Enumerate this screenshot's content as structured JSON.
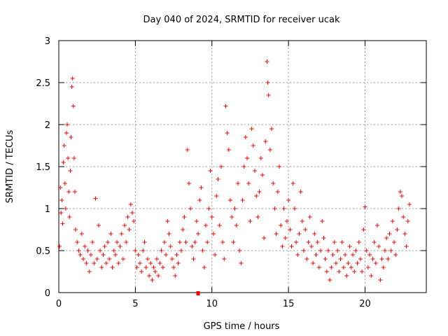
{
  "chart_data": {
    "type": "scatter",
    "title": "Day 040 of 2024, SRMTID for receiver ucak",
    "xlabel": "GPS time / hours",
    "ylabel": "SRMTID / TECUs",
    "xlim": [
      0,
      24
    ],
    "ylim": [
      0,
      3
    ],
    "xticks": [
      0,
      5,
      10,
      15,
      20
    ],
    "xtick_labels": [
      "0",
      "5",
      "10",
      "15",
      "20"
    ],
    "yticks": [
      0,
      0.5,
      1,
      1.5,
      2,
      2.5,
      3
    ],
    "ytick_labels": [
      "0",
      "0.5",
      "1",
      "1.5",
      "2",
      "2.5",
      "3"
    ],
    "grid": true,
    "series": [
      {
        "name": "SRMTID",
        "color": "#ff0000",
        "marker": "plus",
        "note": "dense scatter of many points; representative sample estimated from image",
        "points": [
          [
            0.05,
            0.55
          ],
          [
            0.1,
            1.25
          ],
          [
            0.15,
            0.95
          ],
          [
            0.2,
            1.1
          ],
          [
            0.25,
            0.82
          ],
          [
            0.3,
            1.55
          ],
          [
            0.35,
            1.75
          ],
          [
            0.4,
            1.3
          ],
          [
            0.45,
            1.0
          ],
          [
            0.5,
            1.9
          ],
          [
            0.55,
            2.0
          ],
          [
            0.6,
            1.6
          ],
          [
            0.65,
            1.2
          ],
          [
            0.7,
            0.9
          ],
          [
            0.75,
            1.45
          ],
          [
            0.8,
            1.85
          ],
          [
            0.85,
            2.45
          ],
          [
            0.9,
            2.55
          ],
          [
            0.95,
            2.22
          ],
          [
            1.0,
            1.6
          ],
          [
            1.05,
            1.2
          ],
          [
            1.1,
            0.75
          ],
          [
            1.2,
            0.6
          ],
          [
            1.3,
            0.5
          ],
          [
            1.4,
            0.45
          ],
          [
            1.5,
            0.7
          ],
          [
            1.6,
            0.4
          ],
          [
            1.7,
            0.55
          ],
          [
            1.8,
            0.35
          ],
          [
            1.9,
            0.5
          ],
          [
            2.0,
            0.25
          ],
          [
            2.1,
            0.45
          ],
          [
            2.2,
            0.6
          ],
          [
            2.3,
            0.35
          ],
          [
            2.4,
            1.12
          ],
          [
            2.5,
            0.4
          ],
          [
            2.6,
            0.8
          ],
          [
            2.7,
            0.5
          ],
          [
            2.8,
            0.3
          ],
          [
            2.9,
            0.45
          ],
          [
            3.0,
            0.55
          ],
          [
            3.1,
            0.35
          ],
          [
            3.2,
            0.6
          ],
          [
            3.3,
            0.4
          ],
          [
            3.4,
            0.7
          ],
          [
            3.5,
            0.3
          ],
          [
            3.6,
            0.5
          ],
          [
            3.7,
            0.45
          ],
          [
            3.8,
            0.6
          ],
          [
            3.9,
            0.35
          ],
          [
            4.0,
            0.55
          ],
          [
            4.1,
            0.7
          ],
          [
            4.2,
            0.4
          ],
          [
            4.3,
            0.8
          ],
          [
            4.4,
            0.6
          ],
          [
            4.5,
            0.9
          ],
          [
            4.6,
            0.75
          ],
          [
            4.7,
            1.05
          ],
          [
            4.8,
            0.95
          ],
          [
            4.9,
            0.85
          ],
          [
            5.0,
            0.5
          ],
          [
            5.1,
            0.3
          ],
          [
            5.2,
            0.45
          ],
          [
            5.3,
            0.35
          ],
          [
            5.4,
            0.25
          ],
          [
            5.5,
            0.5
          ],
          [
            5.6,
            0.6
          ],
          [
            5.7,
            0.3
          ],
          [
            5.8,
            0.4
          ],
          [
            5.9,
            0.2
          ],
          [
            6.0,
            0.35
          ],
          [
            6.1,
            0.15
          ],
          [
            6.2,
            0.3
          ],
          [
            6.3,
            0.25
          ],
          [
            6.4,
            0.4
          ],
          [
            6.5,
            0.2
          ],
          [
            6.6,
            0.35
          ],
          [
            6.7,
            0.5
          ],
          [
            6.8,
            0.3
          ],
          [
            6.9,
            0.6
          ],
          [
            7.0,
            0.45
          ],
          [
            7.1,
            0.85
          ],
          [
            7.2,
            0.7
          ],
          [
            7.3,
            0.55
          ],
          [
            7.4,
            0.4
          ],
          [
            7.5,
            0.3
          ],
          [
            7.6,
            0.2
          ],
          [
            7.7,
            0.45
          ],
          [
            7.8,
            0.35
          ],
          [
            7.9,
            0.6
          ],
          [
            8.0,
            0.5
          ],
          [
            8.1,
            0.75
          ],
          [
            8.2,
            0.9
          ],
          [
            8.3,
            0.6
          ],
          [
            8.4,
            1.7
          ],
          [
            8.5,
            1.3
          ],
          [
            8.6,
            1.0
          ],
          [
            8.7,
            0.55
          ],
          [
            8.8,
            0.4
          ],
          [
            8.9,
            0.6
          ],
          [
            9.0,
            0.85
          ],
          [
            9.1,
            0.7
          ],
          [
            9.2,
            1.1
          ],
          [
            9.3,
            1.25
          ],
          [
            9.4,
            0.5
          ],
          [
            9.5,
            0.3
          ],
          [
            9.6,
            0.8
          ],
          [
            9.7,
            0.6
          ],
          [
            9.8,
            1.0
          ],
          [
            9.9,
            1.45
          ],
          [
            10.0,
            0.9
          ],
          [
            10.1,
            0.7
          ],
          [
            10.2,
            0.45
          ],
          [
            10.3,
            1.15
          ],
          [
            10.4,
            1.35
          ],
          [
            10.5,
            0.8
          ],
          [
            10.6,
            1.5
          ],
          [
            10.7,
            0.6
          ],
          [
            10.8,
            0.4
          ],
          [
            10.9,
            2.22
          ],
          [
            11.0,
            1.9
          ],
          [
            11.1,
            1.7
          ],
          [
            11.2,
            1.1
          ],
          [
            11.3,
            0.9
          ],
          [
            11.4,
            0.6
          ],
          [
            11.5,
            1.0
          ],
          [
            11.6,
            0.8
          ],
          [
            11.7,
            1.3
          ],
          [
            11.8,
            0.5
          ],
          [
            11.9,
            0.35
          ],
          [
            12.0,
            1.1
          ],
          [
            12.1,
            1.5
          ],
          [
            12.2,
            1.85
          ],
          [
            12.3,
            1.6
          ],
          [
            12.4,
            1.3
          ],
          [
            12.5,
            0.85
          ],
          [
            12.6,
            1.95
          ],
          [
            12.7,
            1.75
          ],
          [
            12.8,
            1.45
          ],
          [
            12.9,
            1.15
          ],
          [
            13.0,
            0.9
          ],
          [
            13.1,
            1.2
          ],
          [
            13.2,
            1.6
          ],
          [
            13.3,
            1.4
          ],
          [
            13.4,
            0.65
          ],
          [
            13.5,
            1.8
          ],
          [
            13.6,
            2.75
          ],
          [
            13.65,
            2.5
          ],
          [
            13.7,
            2.35
          ],
          [
            13.8,
            1.7
          ],
          [
            13.9,
            1.95
          ],
          [
            14.0,
            1.3
          ],
          [
            14.1,
            1.0
          ],
          [
            14.2,
            0.7
          ],
          [
            14.3,
            1.2
          ],
          [
            14.4,
            1.5
          ],
          [
            14.5,
            0.8
          ],
          [
            14.6,
            0.55
          ],
          [
            14.7,
            1.0
          ],
          [
            14.8,
            0.65
          ],
          [
            14.9,
            0.85
          ],
          [
            15.0,
            1.1
          ],
          [
            15.1,
            0.75
          ],
          [
            15.2,
            0.55
          ],
          [
            15.3,
            1.3
          ],
          [
            15.4,
            1.0
          ],
          [
            15.5,
            0.6
          ],
          [
            15.6,
            0.45
          ],
          [
            15.7,
            0.7
          ],
          [
            15.8,
            1.2
          ],
          [
            15.9,
            0.85
          ],
          [
            16.0,
            0.5
          ],
          [
            16.1,
            0.75
          ],
          [
            16.2,
            0.4
          ],
          [
            16.3,
            0.6
          ],
          [
            16.4,
            0.9
          ],
          [
            16.5,
            0.55
          ],
          [
            16.6,
            0.35
          ],
          [
            16.7,
            0.7
          ],
          [
            16.8,
            0.45
          ],
          [
            16.9,
            0.6
          ],
          [
            17.0,
            0.3
          ],
          [
            17.1,
            0.5
          ],
          [
            17.2,
            0.85
          ],
          [
            17.3,
            0.65
          ],
          [
            17.4,
            0.4
          ],
          [
            17.5,
            0.25
          ],
          [
            17.6,
            0.5
          ],
          [
            17.7,
            0.15
          ],
          [
            17.8,
            0.3
          ],
          [
            17.9,
            0.45
          ],
          [
            18.0,
            0.6
          ],
          [
            18.1,
            0.35
          ],
          [
            18.2,
            0.5
          ],
          [
            18.3,
            0.25
          ],
          [
            18.4,
            0.4
          ],
          [
            18.5,
            0.6
          ],
          [
            18.6,
            0.3
          ],
          [
            18.7,
            0.45
          ],
          [
            18.8,
            0.2
          ],
          [
            18.9,
            0.35
          ],
          [
            19.0,
            0.55
          ],
          [
            19.1,
            0.3
          ],
          [
            19.2,
            0.45
          ],
          [
            19.3,
            0.25
          ],
          [
            19.4,
            0.5
          ],
          [
            19.5,
            0.35
          ],
          [
            19.6,
            0.6
          ],
          [
            19.7,
            0.4
          ],
          [
            19.8,
            0.25
          ],
          [
            19.9,
            0.75
          ],
          [
            20.0,
            1.02
          ],
          [
            20.1,
            0.5
          ],
          [
            20.2,
            0.3
          ],
          [
            20.3,
            0.45
          ],
          [
            20.4,
            0.2
          ],
          [
            20.5,
            0.4
          ],
          [
            20.6,
            0.6
          ],
          [
            20.7,
            0.35
          ],
          [
            20.8,
            0.8
          ],
          [
            20.9,
            0.55
          ],
          [
            21.0,
            0.15
          ],
          [
            21.1,
            0.4
          ],
          [
            21.2,
            0.3
          ],
          [
            21.3,
            0.5
          ],
          [
            21.4,
            0.65
          ],
          [
            21.5,
            0.4
          ],
          [
            21.6,
            0.7
          ],
          [
            21.7,
            0.5
          ],
          [
            21.8,
            0.85
          ],
          [
            21.9,
            0.6
          ],
          [
            22.0,
            0.45
          ],
          [
            22.1,
            0.75
          ],
          [
            22.2,
            1.0
          ],
          [
            22.3,
            1.2
          ],
          [
            22.4,
            1.15
          ],
          [
            22.5,
            0.9
          ],
          [
            22.6,
            0.7
          ],
          [
            22.7,
            0.55
          ],
          [
            22.8,
            0.85
          ],
          [
            22.9,
            1.05
          ]
        ]
      }
    ],
    "extra_marks": [
      {
        "name": "red-square-marker",
        "x": 9.1,
        "y": 0.0,
        "color": "#ff0000"
      }
    ]
  }
}
